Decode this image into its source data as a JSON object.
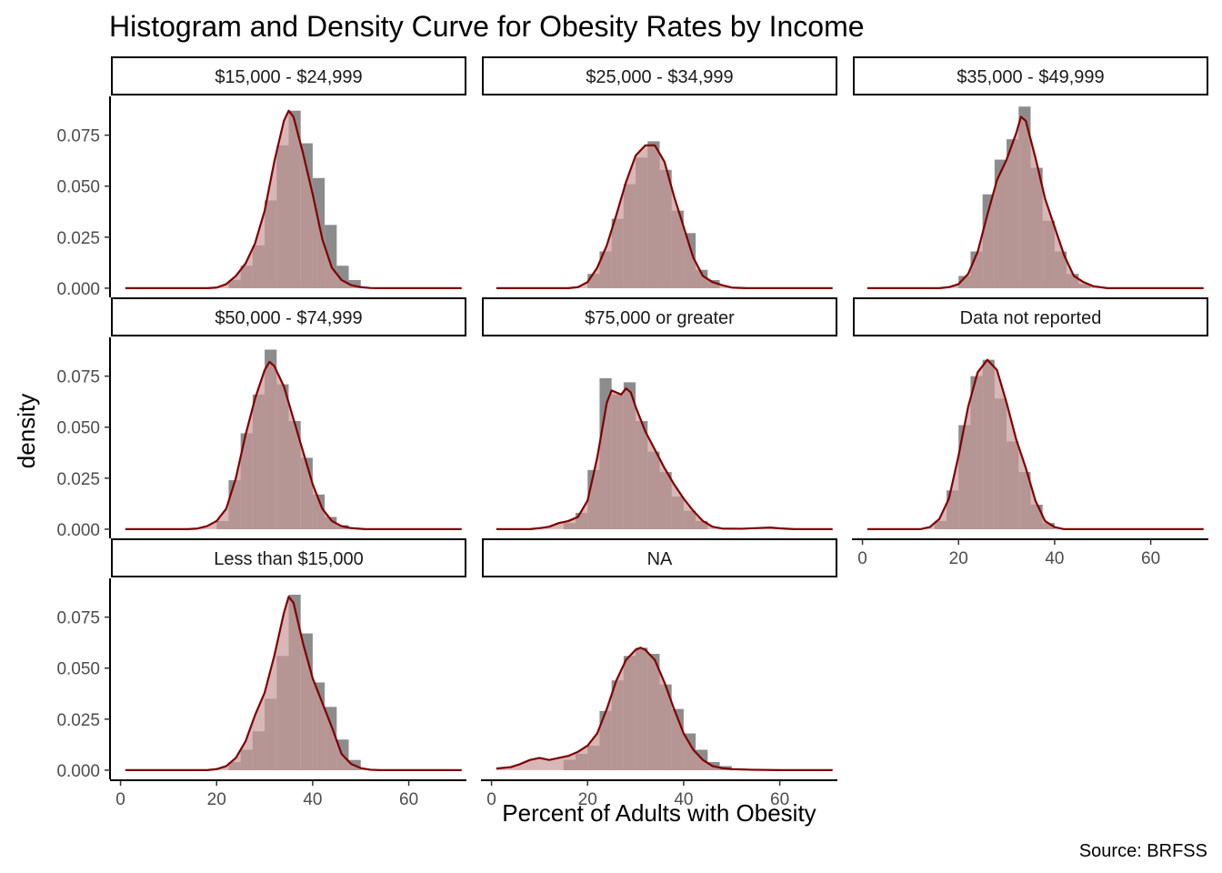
{
  "chart_data": {
    "type": "histogram",
    "title": "Histogram and Density Curve for Obesity Rates by Income",
    "xlabel": "Percent of Adults with Obesity",
    "ylabel": "density",
    "caption": "Source: BRFSS",
    "xlim": [
      -2,
      72
    ],
    "ylim": [
      -0.0045,
      0.094
    ],
    "x_ticks": [
      0,
      20,
      40,
      60
    ],
    "y_ticks": [
      0,
      0.025,
      0.05,
      0.075
    ],
    "y_tick_labels": [
      "0.000",
      "0.025",
      "0.050",
      "0.075"
    ],
    "bin_width": 2.5,
    "grid": false,
    "colors": {
      "bars": "#8c8c8c",
      "density_fill": "#c89898",
      "density_line": "#800000"
    },
    "panels": [
      {
        "label": "$15,000 - $24,999",
        "bins": [
          {
            "x": 23.75,
            "y": 0.004
          },
          {
            "x": 26.25,
            "y": 0.011
          },
          {
            "x": 28.75,
            "y": 0.021
          },
          {
            "x": 31.25,
            "y": 0.043
          },
          {
            "x": 33.75,
            "y": 0.07
          },
          {
            "x": 36.25,
            "y": 0.087
          },
          {
            "x": 38.75,
            "y": 0.071
          },
          {
            "x": 41.25,
            "y": 0.054
          },
          {
            "x": 43.75,
            "y": 0.031
          },
          {
            "x": 46.25,
            "y": 0.011
          },
          {
            "x": 48.75,
            "y": 0.004
          }
        ],
        "density": [
          [
            1,
            0
          ],
          [
            18,
            0
          ],
          [
            20,
            0.0003
          ],
          [
            22,
            0.002
          ],
          [
            24,
            0.006
          ],
          [
            26,
            0.012
          ],
          [
            28,
            0.022
          ],
          [
            30,
            0.038
          ],
          [
            32,
            0.062
          ],
          [
            34,
            0.082
          ],
          [
            35,
            0.087
          ],
          [
            36,
            0.084
          ],
          [
            38,
            0.066
          ],
          [
            40,
            0.046
          ],
          [
            42,
            0.024
          ],
          [
            44,
            0.01
          ],
          [
            46,
            0.004
          ],
          [
            48,
            0.0015
          ],
          [
            50,
            0.0005
          ],
          [
            52,
            0.0001
          ],
          [
            54,
            0
          ],
          [
            71,
            0
          ]
        ]
      },
      {
        "label": "$25,000 - $34,999",
        "bins": [
          {
            "x": 21.25,
            "y": 0.007
          },
          {
            "x": 23.75,
            "y": 0.018
          },
          {
            "x": 26.25,
            "y": 0.034
          },
          {
            "x": 28.75,
            "y": 0.051
          },
          {
            "x": 31.25,
            "y": 0.064
          },
          {
            "x": 33.75,
            "y": 0.072
          },
          {
            "x": 36.25,
            "y": 0.058
          },
          {
            "x": 38.75,
            "y": 0.038
          },
          {
            "x": 41.25,
            "y": 0.027
          },
          {
            "x": 43.75,
            "y": 0.009
          },
          {
            "x": 46.25,
            "y": 0.004
          }
        ],
        "density": [
          [
            1,
            0
          ],
          [
            16,
            0
          ],
          [
            18,
            0.0005
          ],
          [
            20,
            0.003
          ],
          [
            22,
            0.01
          ],
          [
            24,
            0.021
          ],
          [
            26,
            0.036
          ],
          [
            28,
            0.052
          ],
          [
            30,
            0.065
          ],
          [
            32,
            0.07
          ],
          [
            34,
            0.07
          ],
          [
            36,
            0.062
          ],
          [
            38,
            0.045
          ],
          [
            40,
            0.03
          ],
          [
            42,
            0.015
          ],
          [
            44,
            0.006
          ],
          [
            46,
            0.003
          ],
          [
            48,
            0.0015
          ],
          [
            50,
            0.0003
          ],
          [
            53,
            0
          ],
          [
            71,
            0
          ]
        ]
      },
      {
        "label": "$35,000 - $49,999",
        "bins": [
          {
            "x": 21.25,
            "y": 0.006
          },
          {
            "x": 23.75,
            "y": 0.018
          },
          {
            "x": 26.25,
            "y": 0.046
          },
          {
            "x": 28.75,
            "y": 0.063
          },
          {
            "x": 31.25,
            "y": 0.073
          },
          {
            "x": 33.75,
            "y": 0.089
          },
          {
            "x": 36.25,
            "y": 0.059
          },
          {
            "x": 38.75,
            "y": 0.033
          },
          {
            "x": 41.25,
            "y": 0.018
          },
          {
            "x": 43.75,
            "y": 0.007
          },
          {
            "x": 46.25,
            "y": 0.002
          }
        ],
        "density": [
          [
            1,
            0
          ],
          [
            16,
            0
          ],
          [
            18,
            0.0005
          ],
          [
            20,
            0.002
          ],
          [
            22,
            0.007
          ],
          [
            24,
            0.018
          ],
          [
            26,
            0.036
          ],
          [
            28,
            0.053
          ],
          [
            30,
            0.063
          ],
          [
            32,
            0.076
          ],
          [
            33,
            0.084
          ],
          [
            34,
            0.082
          ],
          [
            36,
            0.064
          ],
          [
            38,
            0.044
          ],
          [
            40,
            0.03
          ],
          [
            42,
            0.016
          ],
          [
            44,
            0.006
          ],
          [
            46,
            0.003
          ],
          [
            48,
            0.001
          ],
          [
            51,
            0
          ],
          [
            71,
            0
          ]
        ]
      },
      {
        "label": "$50,000 - $74,999",
        "bins": [
          {
            "x": 21.25,
            "y": 0.004
          },
          {
            "x": 23.75,
            "y": 0.024
          },
          {
            "x": 26.25,
            "y": 0.047
          },
          {
            "x": 28.75,
            "y": 0.066
          },
          {
            "x": 31.25,
            "y": 0.088
          },
          {
            "x": 33.75,
            "y": 0.071
          },
          {
            "x": 36.25,
            "y": 0.053
          },
          {
            "x": 38.75,
            "y": 0.035
          },
          {
            "x": 41.25,
            "y": 0.017
          },
          {
            "x": 43.75,
            "y": 0.006
          },
          {
            "x": 46.25,
            "y": 0.002
          }
        ],
        "density": [
          [
            1,
            0
          ],
          [
            14,
            0
          ],
          [
            16,
            0.0003
          ],
          [
            18,
            0.0015
          ],
          [
            20,
            0.004
          ],
          [
            22,
            0.01
          ],
          [
            24,
            0.025
          ],
          [
            26,
            0.046
          ],
          [
            28,
            0.064
          ],
          [
            30,
            0.078
          ],
          [
            31,
            0.082
          ],
          [
            32,
            0.08
          ],
          [
            34,
            0.07
          ],
          [
            36,
            0.054
          ],
          [
            38,
            0.038
          ],
          [
            40,
            0.022
          ],
          [
            42,
            0.01
          ],
          [
            44,
            0.004
          ],
          [
            46,
            0.0015
          ],
          [
            48,
            0.0005
          ],
          [
            51,
            0
          ],
          [
            71,
            0
          ]
        ]
      },
      {
        "label": "$75,000 or greater",
        "bins": [
          {
            "x": 16.25,
            "y": 0.003
          },
          {
            "x": 18.75,
            "y": 0.008
          },
          {
            "x": 21.25,
            "y": 0.029
          },
          {
            "x": 23.75,
            "y": 0.074
          },
          {
            "x": 26.25,
            "y": 0.066
          },
          {
            "x": 28.75,
            "y": 0.072
          },
          {
            "x": 31.25,
            "y": 0.053
          },
          {
            "x": 33.75,
            "y": 0.038
          },
          {
            "x": 36.25,
            "y": 0.028
          },
          {
            "x": 38.75,
            "y": 0.016
          },
          {
            "x": 41.25,
            "y": 0.009
          },
          {
            "x": 43.75,
            "y": 0.004
          }
        ],
        "density": [
          [
            1,
            0
          ],
          [
            8,
            0
          ],
          [
            10,
            0.0005
          ],
          [
            12,
            0.0012
          ],
          [
            14,
            0.003
          ],
          [
            16,
            0.004
          ],
          [
            18,
            0.006
          ],
          [
            20,
            0.014
          ],
          [
            22,
            0.035
          ],
          [
            24,
            0.062
          ],
          [
            25,
            0.068
          ],
          [
            26,
            0.067
          ],
          [
            27,
            0.066
          ],
          [
            28,
            0.069
          ],
          [
            29,
            0.067
          ],
          [
            30,
            0.06
          ],
          [
            32,
            0.048
          ],
          [
            34,
            0.039
          ],
          [
            36,
            0.03
          ],
          [
            38,
            0.022
          ],
          [
            40,
            0.015
          ],
          [
            42,
            0.009
          ],
          [
            44,
            0.004
          ],
          [
            46,
            0.0012
          ],
          [
            48,
            0.0003
          ],
          [
            52,
            0.0002
          ],
          [
            56,
            0.0006
          ],
          [
            58,
            0.0008
          ],
          [
            60,
            0.0004
          ],
          [
            63,
            0
          ],
          [
            71,
            0
          ]
        ]
      },
      {
        "label": "Data not reported",
        "bins": [
          {
            "x": 16.25,
            "y": 0.004
          },
          {
            "x": 18.75,
            "y": 0.019
          },
          {
            "x": 21.25,
            "y": 0.051
          },
          {
            "x": 23.75,
            "y": 0.075
          },
          {
            "x": 26.25,
            "y": 0.083
          },
          {
            "x": 28.75,
            "y": 0.064
          },
          {
            "x": 31.25,
            "y": 0.043
          },
          {
            "x": 33.75,
            "y": 0.028
          },
          {
            "x": 36.25,
            "y": 0.012
          },
          {
            "x": 38.75,
            "y": 0.003
          }
        ],
        "density": [
          [
            1,
            0
          ],
          [
            12,
            0
          ],
          [
            14,
            0.001
          ],
          [
            16,
            0.005
          ],
          [
            18,
            0.015
          ],
          [
            20,
            0.036
          ],
          [
            22,
            0.06
          ],
          [
            24,
            0.077
          ],
          [
            26,
            0.083
          ],
          [
            28,
            0.078
          ],
          [
            30,
            0.062
          ],
          [
            32,
            0.044
          ],
          [
            34,
            0.03
          ],
          [
            36,
            0.014
          ],
          [
            38,
            0.004
          ],
          [
            40,
            0.001
          ],
          [
            42,
            0
          ],
          [
            71,
            0
          ]
        ]
      },
      {
        "label": "Less than $15,000",
        "bins": [
          {
            "x": 23.75,
            "y": 0.004
          },
          {
            "x": 26.25,
            "y": 0.01
          },
          {
            "x": 28.75,
            "y": 0.019
          },
          {
            "x": 31.25,
            "y": 0.035
          },
          {
            "x": 33.75,
            "y": 0.056
          },
          {
            "x": 36.25,
            "y": 0.086
          },
          {
            "x": 38.75,
            "y": 0.067
          },
          {
            "x": 41.25,
            "y": 0.043
          },
          {
            "x": 43.75,
            "y": 0.031
          },
          {
            "x": 46.25,
            "y": 0.015
          },
          {
            "x": 48.75,
            "y": 0.005
          }
        ],
        "density": [
          [
            1,
            0
          ],
          [
            18,
            0
          ],
          [
            20,
            0.0005
          ],
          [
            22,
            0.002
          ],
          [
            24,
            0.006
          ],
          [
            26,
            0.014
          ],
          [
            28,
            0.027
          ],
          [
            30,
            0.038
          ],
          [
            32,
            0.056
          ],
          [
            34,
            0.077
          ],
          [
            35,
            0.085
          ],
          [
            36,
            0.082
          ],
          [
            38,
            0.062
          ],
          [
            40,
            0.045
          ],
          [
            42,
            0.033
          ],
          [
            44,
            0.021
          ],
          [
            46,
            0.008
          ],
          [
            48,
            0.003
          ],
          [
            50,
            0.001
          ],
          [
            52,
            0.0002
          ],
          [
            54,
            0
          ],
          [
            71,
            0
          ]
        ]
      },
      {
        "label": "NA",
        "bins": [
          {
            "x": 16.25,
            "y": 0.005
          },
          {
            "x": 18.75,
            "y": 0.008
          },
          {
            "x": 21.25,
            "y": 0.012
          },
          {
            "x": 23.75,
            "y": 0.029
          },
          {
            "x": 26.25,
            "y": 0.044
          },
          {
            "x": 28.75,
            "y": 0.056
          },
          {
            "x": 31.25,
            "y": 0.06
          },
          {
            "x": 33.75,
            "y": 0.057
          },
          {
            "x": 36.25,
            "y": 0.042
          },
          {
            "x": 38.75,
            "y": 0.03
          },
          {
            "x": 41.25,
            "y": 0.018
          },
          {
            "x": 43.75,
            "y": 0.01
          },
          {
            "x": 46.25,
            "y": 0.004
          },
          {
            "x": 48.75,
            "y": 0.002
          }
        ],
        "density": [
          [
            1,
            0.0008
          ],
          [
            4,
            0.0015
          ],
          [
            6,
            0.003
          ],
          [
            8,
            0.005
          ],
          [
            10,
            0.006
          ],
          [
            12,
            0.005
          ],
          [
            14,
            0.006
          ],
          [
            16,
            0.007
          ],
          [
            18,
            0.009
          ],
          [
            20,
            0.012
          ],
          [
            22,
            0.018
          ],
          [
            24,
            0.03
          ],
          [
            26,
            0.044
          ],
          [
            28,
            0.054
          ],
          [
            30,
            0.059
          ],
          [
            31,
            0.06
          ],
          [
            32,
            0.059
          ],
          [
            34,
            0.054
          ],
          [
            36,
            0.043
          ],
          [
            38,
            0.03
          ],
          [
            40,
            0.018
          ],
          [
            42,
            0.01
          ],
          [
            44,
            0.005
          ],
          [
            46,
            0.002
          ],
          [
            48,
            0.001
          ],
          [
            50,
            0.0005
          ],
          [
            54,
            0.0002
          ],
          [
            60,
            0
          ],
          [
            71,
            0
          ]
        ]
      }
    ]
  }
}
